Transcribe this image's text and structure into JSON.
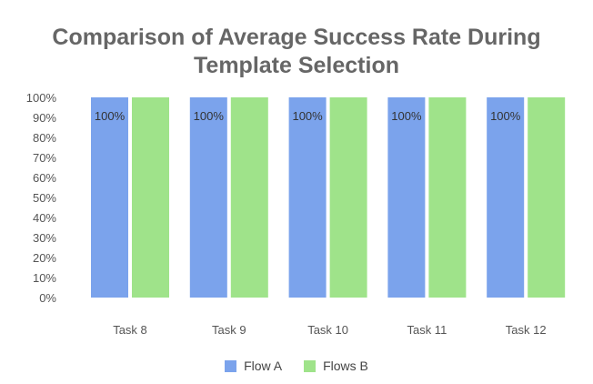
{
  "chart_data": {
    "type": "bar",
    "title_line1": "Comparison of Average Success Rate During",
    "title_line2": "Template Selection",
    "categories": [
      "Task 8",
      "Task 9",
      "Task 10",
      "Task 11",
      "Task 12"
    ],
    "series": [
      {
        "name": "Flow A",
        "values": [
          100,
          100,
          100,
          100,
          100
        ],
        "color": "#7ba3ec"
      },
      {
        "name": "Flows B",
        "values": [
          100,
          100,
          100,
          100,
          100
        ],
        "color": "#9fe38a"
      }
    ],
    "data_labels": [
      "100%",
      "100%",
      "100%",
      "100%",
      "100%"
    ],
    "y_ticks": [
      "0%",
      "10%",
      "20%",
      "30%",
      "40%",
      "50%",
      "60%",
      "70%",
      "80%",
      "90%",
      "100%"
    ],
    "ylim": [
      0,
      100
    ],
    "legend_position": "bottom"
  }
}
